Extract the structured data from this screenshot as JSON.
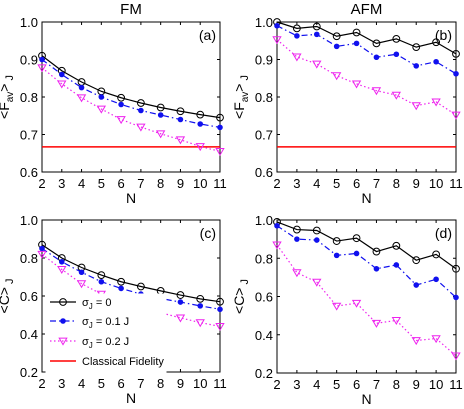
{
  "colors": {
    "sigma0": "#000000",
    "sigma01": "#1010ee",
    "sigma02": "#ee22ee",
    "classical": "#ff0000"
  },
  "markers": {
    "sigma0": "circle",
    "sigma01": "star",
    "sigma02": "triangle-down"
  },
  "legend": {
    "sigma0": {
      "main": "σ",
      "sub": "J",
      "rest": " = 0"
    },
    "sigma01": {
      "main": "σ",
      "sub": "J",
      "rest": " = 0.1 J"
    },
    "sigma02": {
      "main": "σ",
      "sub": "J",
      "rest": " = 0.2 J"
    },
    "classical": "Classical Fidelity"
  },
  "chart_data": [
    {
      "type": "line",
      "panel_label": "(a)",
      "title": "FM",
      "xlabel": "N",
      "ylabel": {
        "main": "<F",
        "sub": "av",
        "rest": ">",
        "after": "J"
      },
      "x": [
        2,
        3,
        4,
        5,
        6,
        7,
        8,
        9,
        10,
        11
      ],
      "xlim": [
        2,
        11
      ],
      "ylim": [
        0.6,
        1.0
      ],
      "yticks": [
        0.6,
        0.7,
        0.8,
        0.9,
        1.0
      ],
      "ytick_labels": [
        "0.6",
        "0.7",
        "0.8",
        "0.9",
        "1.0"
      ],
      "series": [
        {
          "key": "sigma0",
          "values": [
            0.91,
            0.87,
            0.84,
            0.815,
            0.798,
            0.784,
            0.772,
            0.762,
            0.753,
            0.745
          ]
        },
        {
          "key": "sigma01",
          "values": [
            0.9,
            0.86,
            0.825,
            0.8,
            0.78,
            0.764,
            0.752,
            0.74,
            0.728,
            0.719
          ]
        },
        {
          "key": "sigma02",
          "values": [
            0.878,
            0.835,
            0.798,
            0.768,
            0.74,
            0.72,
            0.702,
            0.686,
            0.668,
            0.655
          ]
        }
      ],
      "hline": {
        "key": "classical",
        "value": 0.667
      }
    },
    {
      "type": "line",
      "panel_label": "(b)",
      "title": "AFM",
      "xlabel": "N",
      "ylabel": {
        "main": "<F",
        "sub": "av",
        "rest": ">",
        "after": "J"
      },
      "x": [
        2,
        3,
        4,
        5,
        6,
        7,
        8,
        9,
        10,
        11
      ],
      "xlim": [
        2,
        11
      ],
      "ylim": [
        0.6,
        1.0
      ],
      "yticks": [
        0.6,
        0.7,
        0.8,
        0.9,
        1.0
      ],
      "ytick_labels": [
        "0.6",
        "0.7",
        "0.8",
        "0.9",
        "1.0"
      ],
      "series": [
        {
          "key": "sigma0",
          "values": [
            1.0,
            0.983,
            0.988,
            0.962,
            0.972,
            0.943,
            0.955,
            0.933,
            0.946,
            0.915
          ]
        },
        {
          "key": "sigma01",
          "values": [
            0.99,
            0.963,
            0.967,
            0.935,
            0.943,
            0.906,
            0.914,
            0.883,
            0.894,
            0.862
          ]
        },
        {
          "key": "sigma02",
          "values": [
            0.953,
            0.907,
            0.888,
            0.857,
            0.835,
            0.817,
            0.805,
            0.777,
            0.787,
            0.752
          ]
        }
      ],
      "hline": {
        "key": "classical",
        "value": 0.667
      }
    },
    {
      "type": "line",
      "panel_label": "(c)",
      "xlabel": "N",
      "ylabel": {
        "main": "<C>",
        "sub": "",
        "rest": "",
        "after": "J"
      },
      "x": [
        2,
        3,
        4,
        5,
        6,
        7,
        8,
        9,
        10,
        11
      ],
      "xlim": [
        2,
        11
      ],
      "ylim": [
        0.2,
        1.0
      ],
      "yticks": [
        0.2,
        0.4,
        0.6,
        0.8,
        1.0
      ],
      "ytick_labels": [
        "0.2",
        "0.4",
        "0.6",
        "0.8",
        "1.0"
      ],
      "series": [
        {
          "key": "sigma0",
          "values": [
            0.87,
            0.8,
            0.75,
            0.71,
            0.675,
            0.65,
            0.627,
            0.605,
            0.585,
            0.57
          ]
        },
        {
          "key": "sigma01",
          "values": [
            0.85,
            0.78,
            0.725,
            0.675,
            0.64,
            0.61,
            0.587,
            0.568,
            0.548,
            0.53
          ]
        },
        {
          "key": "sigma02",
          "values": [
            0.82,
            0.74,
            0.665,
            0.61,
            0.57,
            0.54,
            0.512,
            0.485,
            0.46,
            0.44
          ]
        }
      ],
      "show_legend": true,
      "legend_position": "lower-left"
    },
    {
      "type": "line",
      "panel_label": "(d)",
      "xlabel": "N",
      "ylabel": {
        "main": "<C>",
        "sub": "",
        "rest": "",
        "after": "J"
      },
      "x": [
        2,
        3,
        4,
        5,
        6,
        7,
        8,
        9,
        10,
        11
      ],
      "xlim": [
        2,
        11
      ],
      "ylim": [
        0.2,
        1.0
      ],
      "yticks": [
        0.2,
        0.4,
        0.6,
        0.8,
        1.0
      ],
      "ytick_labels": [
        "0.2",
        "0.4",
        "0.6",
        "0.8",
        "1.0"
      ],
      "series": [
        {
          "key": "sigma0",
          "values": [
            0.99,
            0.95,
            0.945,
            0.89,
            0.905,
            0.835,
            0.865,
            0.79,
            0.82,
            0.745
          ]
        },
        {
          "key": "sigma01",
          "values": [
            0.97,
            0.9,
            0.895,
            0.815,
            0.825,
            0.745,
            0.765,
            0.66,
            0.69,
            0.595
          ]
        },
        {
          "key": "sigma02",
          "values": [
            0.87,
            0.725,
            0.675,
            0.55,
            0.565,
            0.46,
            0.475,
            0.37,
            0.38,
            0.29
          ]
        }
      ]
    }
  ]
}
